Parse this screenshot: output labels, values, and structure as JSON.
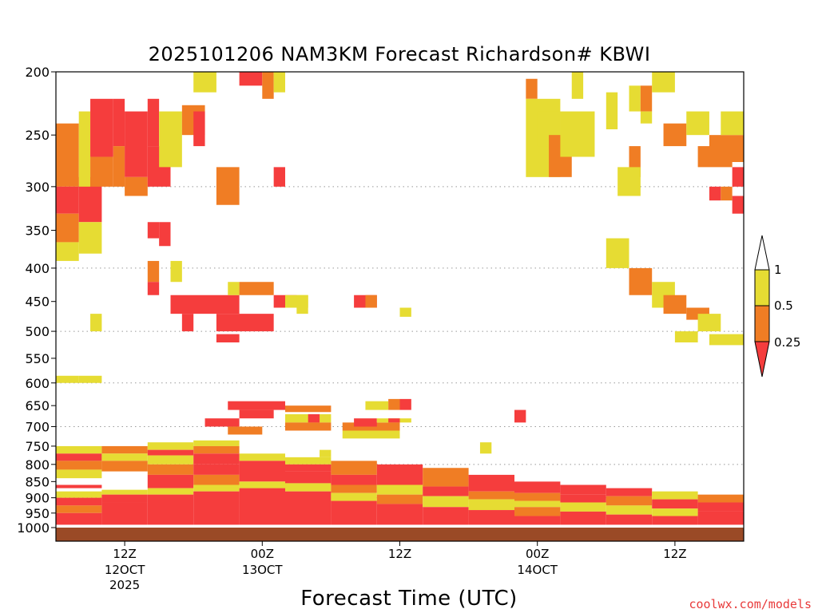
{
  "chart_data": {
    "type": "heatmap",
    "title": "2025101206 NAM3KM Forecast Richardson# KBWI",
    "xlabel": "Forecast Time (UTC)",
    "ylabel": "",
    "credit": "coolwx.com/models",
    "y_axis": {
      "scale": "pressure-log",
      "range": [
        1000,
        200
      ],
      "ticks": [
        200,
        250,
        300,
        350,
        400,
        450,
        500,
        550,
        600,
        650,
        700,
        750,
        800,
        850,
        900,
        950,
        1000
      ],
      "tick_labels": [
        "200",
        "250",
        "300",
        "350",
        "400",
        "450",
        "500",
        "550",
        "600",
        "650",
        "700",
        "750",
        "800",
        "850",
        "900",
        "950",
        "1000"
      ],
      "grid_levels": [
        300,
        400,
        500,
        600,
        700,
        800,
        900
      ]
    },
    "x_axis": {
      "units": "forecast hour",
      "range": [
        0,
        60
      ],
      "ticks": [
        {
          "hour": 6,
          "label": "12Z",
          "sub1": "12OCT",
          "sub2": "2025"
        },
        {
          "hour": 18,
          "label": "00Z",
          "sub1": "13OCT",
          "sub2": ""
        },
        {
          "hour": 30,
          "label": "12Z",
          "sub1": "",
          "sub2": ""
        },
        {
          "hour": 42,
          "label": "00Z",
          "sub1": "14OCT",
          "sub2": ""
        },
        {
          "hour": 54,
          "label": "12Z",
          "sub1": "",
          "sub2": ""
        }
      ]
    },
    "colorbar": {
      "bins": [
        {
          "label": "<0.25",
          "color": "#f53d3d"
        },
        {
          "label": "0.25–0.5",
          "color": "#f07d24"
        },
        {
          "label": "0.5–1",
          "color": "#e6dc33"
        }
      ],
      "tick_labels": [
        "1",
        "0.5",
        "0.25"
      ],
      "surface_color": "#9a4a26"
    },
    "cells": [
      [
        0,
        750,
        4,
        770,
        "Y"
      ],
      [
        0,
        770,
        4,
        790,
        "R"
      ],
      [
        0,
        790,
        4,
        815,
        "O"
      ],
      [
        0,
        815,
        4,
        840,
        "Y"
      ],
      [
        0,
        860,
        4,
        870,
        "R"
      ],
      [
        0,
        880,
        4,
        900,
        "Y"
      ],
      [
        0,
        900,
        4,
        925,
        "R"
      ],
      [
        0,
        925,
        4,
        950,
        "O"
      ],
      [
        0,
        950,
        4,
        990,
        "R"
      ],
      [
        4,
        750,
        8,
        770,
        "O"
      ],
      [
        4,
        770,
        8,
        790,
        "Y"
      ],
      [
        4,
        790,
        8,
        820,
        "O"
      ],
      [
        4,
        875,
        8,
        890,
        "Y"
      ],
      [
        4,
        890,
        8,
        915,
        "R"
      ],
      [
        4,
        915,
        8,
        990,
        "R"
      ],
      [
        8,
        740,
        12,
        760,
        "Y"
      ],
      [
        8,
        760,
        12,
        775,
        "R"
      ],
      [
        8,
        775,
        12,
        800,
        "Y"
      ],
      [
        8,
        800,
        12,
        830,
        "O"
      ],
      [
        8,
        830,
        12,
        870,
        "R"
      ],
      [
        8,
        870,
        12,
        890,
        "Y"
      ],
      [
        8,
        890,
        12,
        990,
        "R"
      ],
      [
        12,
        735,
        16,
        750,
        "Y"
      ],
      [
        12,
        750,
        16,
        770,
        "O"
      ],
      [
        12,
        770,
        16,
        800,
        "R"
      ],
      [
        12,
        800,
        16,
        830,
        "R"
      ],
      [
        12,
        830,
        16,
        860,
        "O"
      ],
      [
        12,
        860,
        16,
        880,
        "Y"
      ],
      [
        12,
        880,
        16,
        990,
        "R"
      ],
      [
        16,
        770,
        20,
        790,
        "Y"
      ],
      [
        16,
        790,
        20,
        850,
        "R"
      ],
      [
        16,
        850,
        20,
        870,
        "Y"
      ],
      [
        16,
        870,
        20,
        990,
        "R"
      ],
      [
        20,
        780,
        24,
        800,
        "Y"
      ],
      [
        20,
        800,
        24,
        820,
        "R"
      ],
      [
        20,
        820,
        24,
        855,
        "R"
      ],
      [
        20,
        855,
        24,
        880,
        "Y"
      ],
      [
        20,
        880,
        24,
        990,
        "R"
      ],
      [
        24,
        790,
        28,
        830,
        "O"
      ],
      [
        24,
        830,
        28,
        860,
        "R"
      ],
      [
        24,
        860,
        28,
        885,
        "O"
      ],
      [
        24,
        885,
        28,
        910,
        "Y"
      ],
      [
        24,
        910,
        28,
        990,
        "R"
      ],
      [
        28,
        800,
        32,
        860,
        "R"
      ],
      [
        28,
        860,
        32,
        890,
        "Y"
      ],
      [
        28,
        890,
        32,
        920,
        "O"
      ],
      [
        28,
        920,
        32,
        990,
        "R"
      ],
      [
        32,
        810,
        36,
        865,
        "O"
      ],
      [
        32,
        865,
        36,
        895,
        "R"
      ],
      [
        32,
        895,
        36,
        930,
        "Y"
      ],
      [
        32,
        930,
        36,
        990,
        "R"
      ],
      [
        36,
        830,
        40,
        880,
        "R"
      ],
      [
        36,
        880,
        40,
        905,
        "O"
      ],
      [
        36,
        905,
        40,
        940,
        "Y"
      ],
      [
        36,
        940,
        40,
        990,
        "R"
      ],
      [
        40,
        850,
        44,
        885,
        "R"
      ],
      [
        40,
        885,
        44,
        910,
        "O"
      ],
      [
        40,
        910,
        44,
        930,
        "Y"
      ],
      [
        40,
        930,
        44,
        960,
        "O"
      ],
      [
        40,
        960,
        44,
        990,
        "R"
      ],
      [
        44,
        860,
        48,
        890,
        "R"
      ],
      [
        44,
        890,
        48,
        915,
        "R"
      ],
      [
        44,
        915,
        48,
        945,
        "Y"
      ],
      [
        44,
        945,
        48,
        990,
        "R"
      ],
      [
        48,
        870,
        52,
        895,
        "R"
      ],
      [
        48,
        895,
        52,
        925,
        "O"
      ],
      [
        48,
        925,
        52,
        955,
        "Y"
      ],
      [
        48,
        955,
        52,
        990,
        "R"
      ],
      [
        52,
        880,
        56,
        905,
        "Y"
      ],
      [
        52,
        905,
        56,
        935,
        "R"
      ],
      [
        52,
        935,
        56,
        960,
        "Y"
      ],
      [
        52,
        960,
        56,
        990,
        "R"
      ],
      [
        56,
        890,
        60,
        915,
        "O"
      ],
      [
        56,
        915,
        60,
        945,
        "R"
      ],
      [
        56,
        945,
        60,
        990,
        "R"
      ],
      [
        0,
        240,
        2,
        300,
        "O"
      ],
      [
        0,
        300,
        2,
        330,
        "R"
      ],
      [
        0,
        330,
        2,
        365,
        "O"
      ],
      [
        0,
        365,
        2,
        390,
        "Y"
      ],
      [
        0,
        585,
        2,
        600,
        "Y"
      ],
      [
        2,
        290,
        4,
        340,
        "R"
      ],
      [
        2,
        340,
        4,
        380,
        "Y"
      ],
      [
        2,
        585,
        4,
        600,
        "Y"
      ],
      [
        3,
        470,
        4,
        500,
        "Y"
      ],
      [
        2,
        230,
        3,
        300,
        "Y"
      ],
      [
        3,
        220,
        5,
        270,
        "R"
      ],
      [
        3,
        270,
        5,
        300,
        "O"
      ],
      [
        5,
        220,
        6,
        260,
        "R"
      ],
      [
        5,
        260,
        6,
        300,
        "O"
      ],
      [
        6,
        230,
        8,
        290,
        "R"
      ],
      [
        6,
        290,
        8,
        310,
        "O"
      ],
      [
        8,
        220,
        9,
        260,
        "R"
      ],
      [
        8,
        260,
        10,
        300,
        "R"
      ],
      [
        8,
        340,
        9,
        360,
        "R"
      ],
      [
        8,
        390,
        9,
        420,
        "O"
      ],
      [
        8,
        420,
        9,
        440,
        "R"
      ],
      [
        9,
        230,
        11,
        280,
        "Y"
      ],
      [
        9,
        340,
        10,
        370,
        "R"
      ],
      [
        10,
        390,
        11,
        420,
        "Y"
      ],
      [
        12,
        200,
        14,
        215,
        "Y"
      ],
      [
        10,
        440,
        16,
        470,
        "R"
      ],
      [
        11,
        470,
        12,
        500,
        "R"
      ],
      [
        11,
        225,
        13,
        250,
        "O"
      ],
      [
        12,
        230,
        13,
        260,
        "R"
      ],
      [
        14,
        470,
        19,
        500,
        "R"
      ],
      [
        14,
        505,
        16,
        520,
        "R"
      ],
      [
        15,
        640,
        20,
        660,
        "R"
      ],
      [
        16,
        660,
        19,
        680,
        "R"
      ],
      [
        13,
        680,
        16,
        700,
        "R"
      ],
      [
        15,
        700,
        18,
        720,
        "O"
      ],
      [
        15,
        420,
        16,
        440,
        "Y"
      ],
      [
        16,
        420,
        19,
        440,
        "O"
      ],
      [
        14,
        280,
        16,
        320,
        "O"
      ],
      [
        16,
        200,
        18,
        210,
        "R"
      ],
      [
        18,
        200,
        19,
        220,
        "O"
      ],
      [
        19,
        200,
        20,
        215,
        "Y"
      ],
      [
        19,
        280,
        20,
        300,
        "R"
      ],
      [
        19,
        440,
        21,
        460,
        "R"
      ],
      [
        20,
        440,
        22,
        460,
        "Y"
      ],
      [
        21,
        440,
        22,
        470,
        "Y"
      ],
      [
        20,
        650,
        24,
        665,
        "O"
      ],
      [
        20,
        670,
        24,
        690,
        "Y"
      ],
      [
        20,
        690,
        24,
        710,
        "O"
      ],
      [
        22,
        670,
        23,
        690,
        "R"
      ],
      [
        23,
        760,
        24,
        780,
        "Y"
      ],
      [
        25,
        690,
        30,
        710,
        "O"
      ],
      [
        25,
        710,
        30,
        730,
        "Y"
      ],
      [
        26,
        440,
        28,
        460,
        "R"
      ],
      [
        27,
        440,
        28,
        460,
        "O"
      ],
      [
        26,
        680,
        28,
        700,
        "R"
      ],
      [
        27,
        640,
        29,
        660,
        "Y"
      ],
      [
        29,
        635,
        30,
        660,
        "O"
      ],
      [
        30,
        635,
        31,
        660,
        "R"
      ],
      [
        28,
        680,
        31,
        690,
        "Y"
      ],
      [
        29,
        680,
        30,
        690,
        "R"
      ],
      [
        30,
        460,
        31,
        475,
        "Y"
      ],
      [
        37,
        740,
        38,
        770,
        "Y"
      ],
      [
        40,
        660,
        41,
        690,
        "R"
      ],
      [
        41,
        205,
        42,
        220,
        "O"
      ],
      [
        41,
        220,
        44,
        290,
        "Y"
      ],
      [
        42,
        230,
        44,
        260,
        "Y"
      ],
      [
        43,
        250,
        45,
        290,
        "O"
      ],
      [
        45,
        200,
        46,
        220,
        "Y"
      ],
      [
        44,
        230,
        47,
        270,
        "Y"
      ],
      [
        48,
        215,
        49,
        245,
        "Y"
      ],
      [
        50,
        210,
        51,
        230,
        "Y"
      ],
      [
        51,
        210,
        52,
        230,
        "O"
      ],
      [
        50,
        260,
        51,
        290,
        "O"
      ],
      [
        49,
        280,
        51,
        310,
        "Y"
      ],
      [
        48,
        360,
        50,
        400,
        "Y"
      ],
      [
        50,
        400,
        52,
        440,
        "O"
      ],
      [
        52,
        420,
        54,
        460,
        "Y"
      ],
      [
        53,
        440,
        55,
        470,
        "O"
      ],
      [
        55,
        460,
        57,
        480,
        "O"
      ],
      [
        56,
        470,
        58,
        500,
        "Y"
      ],
      [
        54,
        500,
        56,
        520,
        "Y"
      ],
      [
        57,
        505,
        60,
        525,
        "Y"
      ],
      [
        51,
        230,
        52,
        240,
        "Y"
      ],
      [
        52,
        200,
        54,
        215,
        "Y"
      ],
      [
        53,
        240,
        55,
        260,
        "O"
      ],
      [
        55,
        230,
        57,
        250,
        "Y"
      ],
      [
        56,
        260,
        59,
        280,
        "O"
      ],
      [
        57,
        250,
        60,
        275,
        "O"
      ],
      [
        58,
        230,
        60,
        250,
        "Y"
      ],
      [
        59,
        280,
        60,
        300,
        "R"
      ],
      [
        57,
        300,
        58,
        315,
        "R"
      ],
      [
        58,
        300,
        59,
        315,
        "O"
      ],
      [
        59,
        310,
        60,
        330,
        "R"
      ]
    ]
  }
}
